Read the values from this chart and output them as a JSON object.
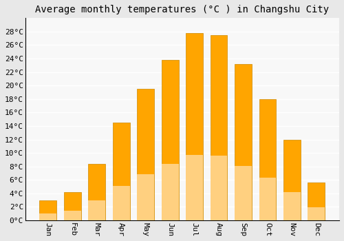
{
  "title": "Average monthly temperatures (°C ) in Changshu City",
  "months": [
    "Jan",
    "Feb",
    "Mar",
    "Apr",
    "May",
    "Jun",
    "Jul",
    "Aug",
    "Sep",
    "Oct",
    "Nov",
    "Dec"
  ],
  "temperatures": [
    3.0,
    4.2,
    8.4,
    14.5,
    19.5,
    23.8,
    27.8,
    27.5,
    23.2,
    18.0,
    12.0,
    5.6
  ],
  "bar_color_top": "#FFA500",
  "bar_color_bottom": "#FFD080",
  "bar_edge_color": "#CC8800",
  "bar_edge_width": 0.5,
  "ylim": [
    0,
    30
  ],
  "yticks": [
    0,
    2,
    4,
    6,
    8,
    10,
    12,
    14,
    16,
    18,
    20,
    22,
    24,
    26,
    28
  ],
  "ytick_labels": [
    "0°C",
    "2°C",
    "4°C",
    "6°C",
    "8°C",
    "10°C",
    "12°C",
    "14°C",
    "16°C",
    "18°C",
    "20°C",
    "22°C",
    "24°C",
    "26°C",
    "28°C"
  ],
  "plot_bg_color": "#f8f8f8",
  "figure_bg_color": "#e8e8e8",
  "grid_color": "#ffffff",
  "grid_linewidth": 1.0,
  "title_fontsize": 10,
  "tick_fontsize": 8,
  "font_family": "monospace",
  "bar_width": 0.7,
  "spine_color": "#000000"
}
